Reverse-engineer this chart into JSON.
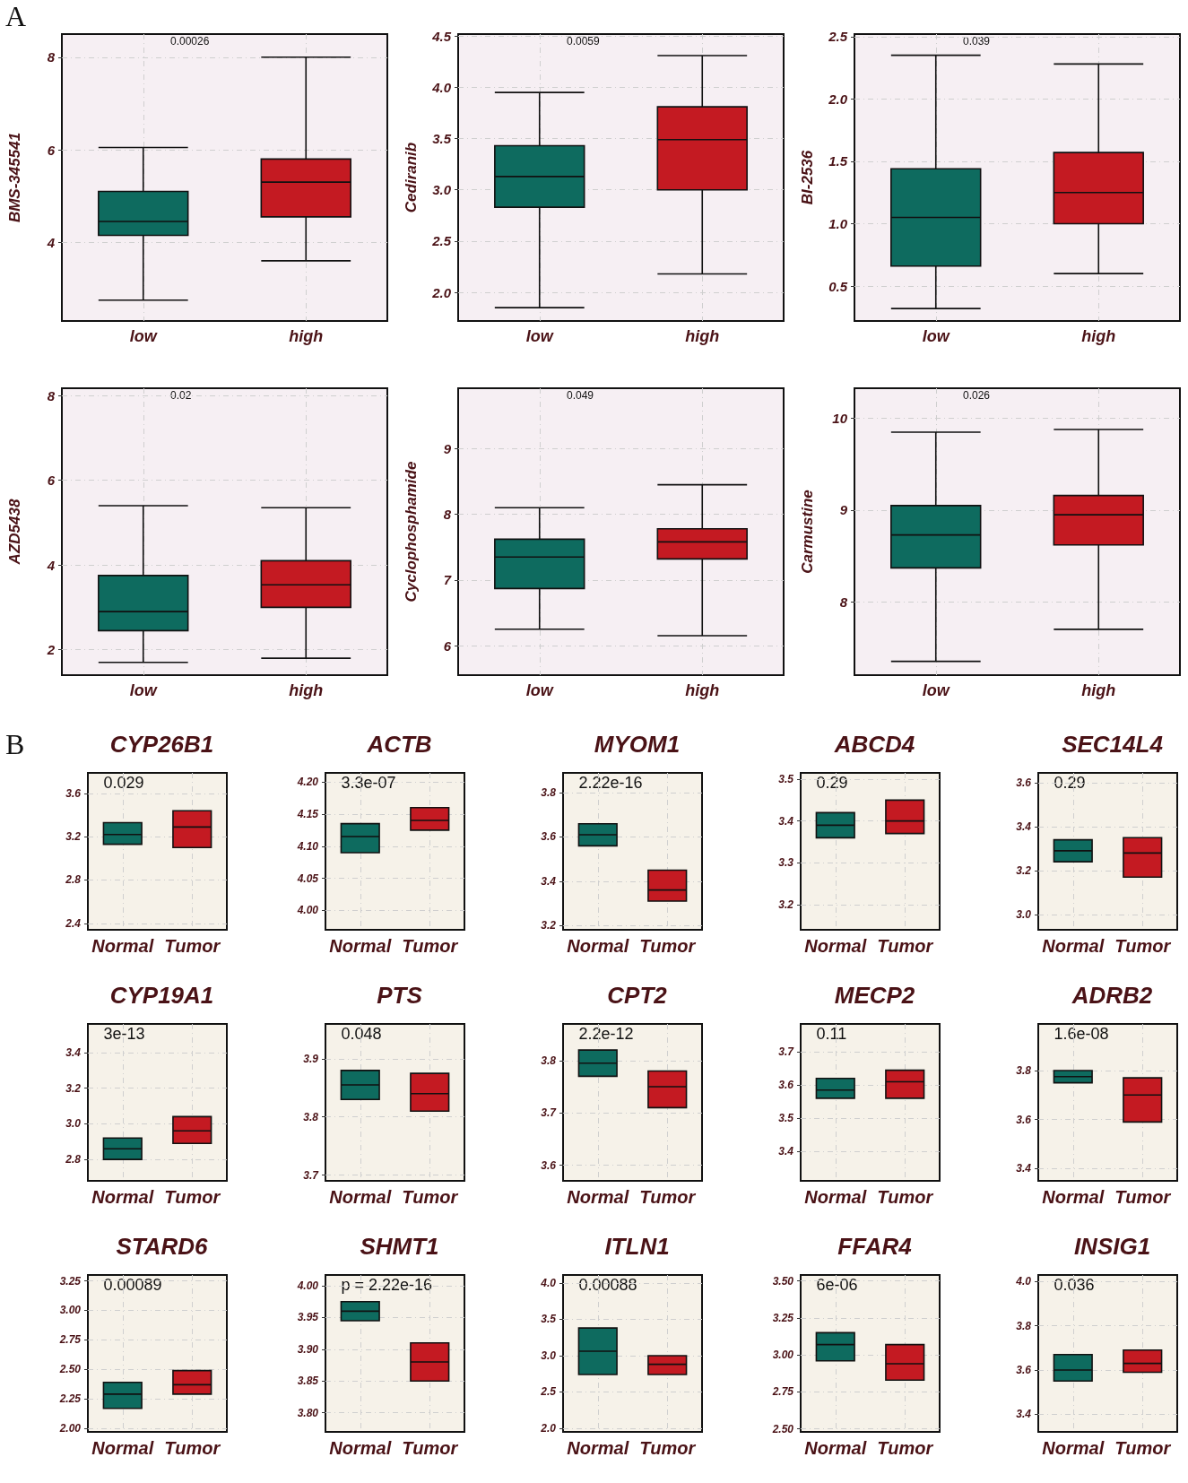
{
  "chart_data": [
    {
      "type": "box",
      "ylabel": "BMS-345541",
      "categories": [
        "low",
        "high"
      ],
      "colors": [
        "#0e6b5f",
        "#c41a22"
      ],
      "ylim": [
        2.3,
        8.5
      ],
      "yticks": [
        4,
        6,
        8
      ],
      "grid": true,
      "annotations": [
        "0.00026",
        "A"
      ],
      "boxes": [
        {
          "low": 2.75,
          "q1": 4.15,
          "median": 4.45,
          "q3": 5.1,
          "high": 6.05
        },
        {
          "low": 3.6,
          "q1": 4.55,
          "median": 5.3,
          "q3": 5.8,
          "high": 8.0
        }
      ]
    },
    {
      "type": "box",
      "ylabel": "Cediranib",
      "categories": [
        "low",
        "high"
      ],
      "colors": [
        "#0e6b5f",
        "#c41a22"
      ],
      "ylim": [
        1.72,
        4.52
      ],
      "yticks": [
        {
          "value": 2,
          "label": "2.0"
        },
        {
          "value": 2.5,
          "label": "2.5"
        },
        {
          "value": 3,
          "label": "3.0"
        },
        {
          "value": 3.5,
          "label": "3.5"
        },
        {
          "value": 4,
          "label": "4.0"
        },
        {
          "value": 4.5,
          "label": "4.5"
        }
      ],
      "grid": true,
      "annotations": [
        "0.0059"
      ],
      "boxes": [
        {
          "low": 1.85,
          "q1": 2.83,
          "median": 3.13,
          "q3": 3.43,
          "high": 3.95
        },
        {
          "low": 2.18,
          "q1": 3.0,
          "median": 3.49,
          "q3": 3.81,
          "high": 4.31
        }
      ]
    },
    {
      "type": "box",
      "ylabel": "BI-2536",
      "categories": [
        "low",
        "high"
      ],
      "colors": [
        "#0e6b5f",
        "#c41a22"
      ],
      "ylim": [
        0.22,
        2.52
      ],
      "yticks": [
        {
          "value": 0.5,
          "label": "0.5"
        },
        {
          "value": 1,
          "label": "1.0"
        },
        {
          "value": 1.5,
          "label": "1.5"
        },
        {
          "value": 2,
          "label": "2.0"
        },
        {
          "value": 2.5,
          "label": "2.5"
        }
      ],
      "grid": true,
      "annotations": [
        "0.039"
      ],
      "boxes": [
        {
          "low": 0.32,
          "q1": 0.66,
          "median": 1.05,
          "q3": 1.44,
          "high": 2.35
        },
        {
          "low": 0.6,
          "q1": 1.0,
          "median": 1.25,
          "q3": 1.57,
          "high": 2.28
        }
      ]
    },
    {
      "type": "box",
      "ylabel": "AZD5438",
      "categories": [
        "low",
        "high"
      ],
      "colors": [
        "#0e6b5f",
        "#c41a22"
      ],
      "ylim": [
        1.4,
        8.17
      ],
      "yticks": [
        2,
        4,
        6,
        8
      ],
      "grid": true,
      "annotations": [
        "0.02"
      ],
      "boxes": [
        {
          "low": 1.7,
          "q1": 2.45,
          "median": 2.9,
          "q3": 3.75,
          "high": 5.4
        },
        {
          "low": 1.8,
          "q1": 3.0,
          "median": 3.53,
          "q3": 4.1,
          "high": 5.35
        }
      ]
    },
    {
      "type": "box",
      "ylabel": "Cyclophosphamide",
      "categories": [
        "low",
        "high"
      ],
      "colors": [
        "#0e6b5f",
        "#c41a22"
      ],
      "ylim": [
        5.55,
        9.92
      ],
      "yticks": [
        6,
        7,
        8,
        9
      ],
      "grid": true,
      "annotations": [
        "0.049"
      ],
      "boxes": [
        {
          "low": 6.25,
          "q1": 6.87,
          "median": 7.35,
          "q3": 7.62,
          "high": 8.1
        },
        {
          "low": 6.15,
          "q1": 7.32,
          "median": 7.58,
          "q3": 7.78,
          "high": 8.45
        }
      ]
    },
    {
      "type": "box",
      "ylabel": "Carmustine",
      "categories": [
        "low",
        "high"
      ],
      "colors": [
        "#0e6b5f",
        "#c41a22"
      ],
      "ylim": [
        7.2,
        10.33
      ],
      "yticks": [
        8,
        9,
        10
      ],
      "grid": true,
      "annotations": [
        "0.026"
      ],
      "boxes": [
        {
          "low": 7.35,
          "q1": 8.37,
          "median": 8.73,
          "q3": 9.05,
          "high": 9.85
        },
        {
          "low": 7.7,
          "q1": 8.62,
          "median": 8.95,
          "q3": 9.16,
          "high": 9.88
        }
      ]
    },
    {
      "type": "box",
      "title": "CYP26B1",
      "categories": [
        "Normal",
        "Tumor"
      ],
      "colors": [
        "#0e6b5f",
        "#c41a22"
      ],
      "ylim": [
        2.34,
        3.79
      ],
      "yticks": [
        2.4,
        2.8,
        3.2,
        3.6
      ],
      "grid": true,
      "annotations": [
        "0.029",
        "B"
      ],
      "boxes": [
        {
          "low": 3.13,
          "q1": 3.13,
          "median": 3.22,
          "q3": 3.33,
          "high": 3.33
        },
        {
          "low": 3.1,
          "q1": 3.1,
          "median": 3.29,
          "q3": 3.44,
          "high": 3.44
        }
      ]
    },
    {
      "type": "box",
      "title": "ACTB",
      "categories": [
        "Normal",
        "Tumor"
      ],
      "colors": [
        "#0e6b5f",
        "#c41a22"
      ],
      "ylim": [
        3.97,
        4.214
      ],
      "yticks": [
        {
          "value": 4,
          "label": "4.00"
        },
        {
          "value": 4.05,
          "label": "4.05"
        },
        {
          "value": 4.1,
          "label": "4.10"
        },
        {
          "value": 4.15,
          "label": "4.15"
        },
        {
          "value": 4.2,
          "label": "4.20"
        }
      ],
      "grid": true,
      "annotations": [
        "3.3e-07"
      ],
      "boxes": [
        {
          "low": 4.09,
          "q1": 4.09,
          "median": 4.115,
          "q3": 4.135,
          "high": 4.135
        },
        {
          "low": 4.125,
          "q1": 4.125,
          "median": 4.14,
          "q3": 4.16,
          "high": 4.16
        }
      ]
    },
    {
      "type": "box",
      "title": "MYOM1",
      "categories": [
        "Normal",
        "Tumor"
      ],
      "colors": [
        "#0e6b5f",
        "#c41a22"
      ],
      "ylim": [
        3.18,
        3.89
      ],
      "yticks": [
        3.2,
        3.4,
        3.6,
        3.8
      ],
      "grid": true,
      "annotations": [
        "2.22e-16"
      ],
      "boxes": [
        {
          "low": 3.56,
          "q1": 3.56,
          "median": 3.61,
          "q3": 3.66,
          "high": 3.66
        },
        {
          "low": 3.31,
          "q1": 3.31,
          "median": 3.36,
          "q3": 3.45,
          "high": 3.45
        }
      ]
    },
    {
      "type": "box",
      "title": "ABCD4",
      "categories": [
        "Normal",
        "Tumor"
      ],
      "colors": [
        "#0e6b5f",
        "#c41a22"
      ],
      "ylim": [
        3.14,
        3.515
      ],
      "yticks": [
        3.2,
        3.3,
        3.4,
        3.5
      ],
      "grid": true,
      "annotations": [
        "0.29"
      ],
      "boxes": [
        {
          "low": 3.36,
          "q1": 3.36,
          "median": 3.39,
          "q3": 3.42,
          "high": 3.42
        },
        {
          "low": 3.37,
          "q1": 3.37,
          "median": 3.4,
          "q3": 3.45,
          "high": 3.45
        }
      ]
    },
    {
      "type": "box",
      "title": "SEC14L4",
      "categories": [
        "Normal",
        "Tumor"
      ],
      "colors": [
        "#0e6b5f",
        "#c41a22"
      ],
      "ylim": [
        2.93,
        3.645
      ],
      "yticks": [
        {
          "value": 3,
          "label": "3.0"
        },
        {
          "value": 3.2,
          "label": "3.2"
        },
        {
          "value": 3.4,
          "label": "3.4"
        },
        {
          "value": 3.6,
          "label": "3.6"
        }
      ],
      "grid": true,
      "annotations": [
        "0.29"
      ],
      "boxes": [
        {
          "low": 3.24,
          "q1": 3.24,
          "median": 3.29,
          "q3": 3.34,
          "high": 3.34
        },
        {
          "low": 3.17,
          "q1": 3.17,
          "median": 3.28,
          "q3": 3.35,
          "high": 3.35
        }
      ]
    },
    {
      "type": "box",
      "title": "CYP19A1",
      "categories": [
        "Normal",
        "Tumor"
      ],
      "colors": [
        "#0e6b5f",
        "#c41a22"
      ],
      "ylim": [
        2.68,
        3.56
      ],
      "yticks": [
        {
          "value": 2.8,
          "label": "2.8"
        },
        {
          "value": 3,
          "label": "3.0"
        },
        {
          "value": 3.2,
          "label": "3.2"
        },
        {
          "value": 3.4,
          "label": "3.4"
        }
      ],
      "grid": true,
      "annotations": [
        "3e-13"
      ],
      "boxes": [
        {
          "low": 2.8,
          "q1": 2.8,
          "median": 2.86,
          "q3": 2.92,
          "high": 2.92
        },
        {
          "low": 2.89,
          "q1": 2.89,
          "median": 2.96,
          "q3": 3.04,
          "high": 3.04
        }
      ]
    },
    {
      "type": "box",
      "title": "PTS",
      "categories": [
        "Normal",
        "Tumor"
      ],
      "colors": [
        "#0e6b5f",
        "#c41a22"
      ],
      "ylim": [
        3.69,
        3.96
      ],
      "yticks": [
        3.7,
        3.8,
        3.9
      ],
      "grid": true,
      "annotations": [
        "0.048"
      ],
      "boxes": [
        {
          "low": 3.83,
          "q1": 3.83,
          "median": 3.855,
          "q3": 3.88,
          "high": 3.88
        },
        {
          "low": 3.81,
          "q1": 3.81,
          "median": 3.84,
          "q3": 3.875,
          "high": 3.875
        }
      ]
    },
    {
      "type": "box",
      "title": "CPT2",
      "categories": [
        "Normal",
        "Tumor"
      ],
      "colors": [
        "#0e6b5f",
        "#c41a22"
      ],
      "ylim": [
        3.57,
        3.87
      ],
      "yticks": [
        3.6,
        3.7,
        3.8
      ],
      "grid": true,
      "annotations": [
        "2.2e-12"
      ],
      "boxes": [
        {
          "low": 3.77,
          "q1": 3.77,
          "median": 3.795,
          "q3": 3.82,
          "high": 3.82
        },
        {
          "low": 3.71,
          "q1": 3.71,
          "median": 3.75,
          "q3": 3.78,
          "high": 3.78
        }
      ]
    },
    {
      "type": "box",
      "title": "MECP2",
      "categories": [
        "Normal",
        "Tumor"
      ],
      "colors": [
        "#0e6b5f",
        "#c41a22"
      ],
      "ylim": [
        3.31,
        3.785
      ],
      "yticks": [
        3.4,
        3.5,
        3.6,
        3.7
      ],
      "grid": true,
      "annotations": [
        "0.11"
      ],
      "boxes": [
        {
          "low": 3.56,
          "q1": 3.56,
          "median": 3.585,
          "q3": 3.62,
          "high": 3.62
        },
        {
          "low": 3.56,
          "q1": 3.56,
          "median": 3.61,
          "q3": 3.645,
          "high": 3.645
        }
      ]
    },
    {
      "type": "box",
      "title": "ADRB2",
      "categories": [
        "Normal",
        "Tumor"
      ],
      "colors": [
        "#0e6b5f",
        "#c41a22"
      ],
      "ylim": [
        3.35,
        3.99
      ],
      "yticks": [
        3.4,
        3.6,
        3.8
      ],
      "grid": true,
      "annotations": [
        "1.6e-08"
      ],
      "boxes": [
        {
          "low": 3.75,
          "q1": 3.75,
          "median": 3.775,
          "q3": 3.8,
          "high": 3.8
        },
        {
          "low": 3.59,
          "q1": 3.59,
          "median": 3.7,
          "q3": 3.77,
          "high": 3.77
        }
      ]
    },
    {
      "type": "box",
      "title": "STARD6",
      "categories": [
        "Normal",
        "Tumor"
      ],
      "colors": [
        "#0e6b5f",
        "#c41a22"
      ],
      "ylim": [
        1.97,
        3.3
      ],
      "yticks": [
        {
          "value": 2,
          "label": "2.00"
        },
        {
          "value": 2.25,
          "label": "2.25"
        },
        {
          "value": 2.5,
          "label": "2.50"
        },
        {
          "value": 2.75,
          "label": "2.75"
        },
        {
          "value": 3,
          "label": "3.00"
        },
        {
          "value": 3.25,
          "label": "3.25"
        }
      ],
      "grid": true,
      "annotations": [
        "0.00089"
      ],
      "boxes": [
        {
          "low": 2.17,
          "q1": 2.17,
          "median": 2.29,
          "q3": 2.39,
          "high": 2.39
        },
        {
          "low": 2.29,
          "q1": 2.29,
          "median": 2.37,
          "q3": 2.49,
          "high": 2.49
        }
      ]
    },
    {
      "type": "box",
      "title": "SHMT1",
      "categories": [
        "Normal",
        "Tumor"
      ],
      "colors": [
        "#0e6b5f",
        "#c41a22"
      ],
      "ylim": [
        3.77,
        4.017
      ],
      "yticks": [
        {
          "value": 3.8,
          "label": "3.80"
        },
        {
          "value": 3.85,
          "label": "3.85"
        },
        {
          "value": 3.9,
          "label": "3.90"
        },
        {
          "value": 3.95,
          "label": "3.95"
        },
        {
          "value": 4,
          "label": "4.00"
        }
      ],
      "grid": true,
      "annotations": [
        "p = 2.22e-16"
      ],
      "boxes": [
        {
          "low": 3.945,
          "q1": 3.945,
          "median": 3.96,
          "q3": 3.975,
          "high": 3.975
        },
        {
          "low": 3.85,
          "q1": 3.85,
          "median": 3.88,
          "q3": 3.91,
          "high": 3.91
        }
      ]
    },
    {
      "type": "box",
      "title": "ITLN1",
      "categories": [
        "Normal",
        "Tumor"
      ],
      "colors": [
        "#0e6b5f",
        "#c41a22"
      ],
      "ylim": [
        1.95,
        4.11
      ],
      "yticks": [
        {
          "value": 2,
          "label": "2.0"
        },
        {
          "value": 2.5,
          "label": "2.5"
        },
        {
          "value": 3,
          "label": "3.0"
        },
        {
          "value": 3.5,
          "label": "3.5"
        },
        {
          "value": 4,
          "label": "4.0"
        }
      ],
      "grid": true,
      "annotations": [
        "0.00088"
      ],
      "boxes": [
        {
          "low": 2.74,
          "q1": 2.74,
          "median": 3.06,
          "q3": 3.38,
          "high": 3.38
        },
        {
          "low": 2.74,
          "q1": 2.74,
          "median": 2.88,
          "q3": 3.0,
          "high": 3.0
        }
      ]
    },
    {
      "type": "box",
      "title": "FFAR4",
      "categories": [
        "Normal",
        "Tumor"
      ],
      "colors": [
        "#0e6b5f",
        "#c41a22"
      ],
      "ylim": [
        2.48,
        3.54
      ],
      "yticks": [
        {
          "value": 2.5,
          "label": "2.50"
        },
        {
          "value": 2.75,
          "label": "2.75"
        },
        {
          "value": 3,
          "label": "3.00"
        },
        {
          "value": 3.25,
          "label": "3.25"
        },
        {
          "value": 3.5,
          "label": "3.50"
        }
      ],
      "grid": true,
      "annotations": [
        "6e-06"
      ],
      "boxes": [
        {
          "low": 2.96,
          "q1": 2.96,
          "median": 3.07,
          "q3": 3.15,
          "high": 3.15
        },
        {
          "low": 2.83,
          "q1": 2.83,
          "median": 2.94,
          "q3": 3.07,
          "high": 3.07
        }
      ]
    },
    {
      "type": "box",
      "title": "INSIG1",
      "categories": [
        "Normal",
        "Tumor"
      ],
      "colors": [
        "#0e6b5f",
        "#c41a22"
      ],
      "ylim": [
        3.32,
        4.03
      ],
      "yticks": [
        {
          "value": 3.4,
          "label": "3.4"
        },
        {
          "value": 3.6,
          "label": "3.6"
        },
        {
          "value": 3.8,
          "label": "3.8"
        },
        {
          "value": 4,
          "label": "4.0"
        }
      ],
      "grid": true,
      "annotations": [
        "0.036"
      ],
      "boxes": [
        {
          "low": 3.55,
          "q1": 3.55,
          "median": 3.6,
          "q3": 3.67,
          "high": 3.67
        },
        {
          "low": 3.59,
          "q1": 3.59,
          "median": 3.63,
          "q3": 3.69,
          "high": 3.69
        }
      ]
    }
  ]
}
